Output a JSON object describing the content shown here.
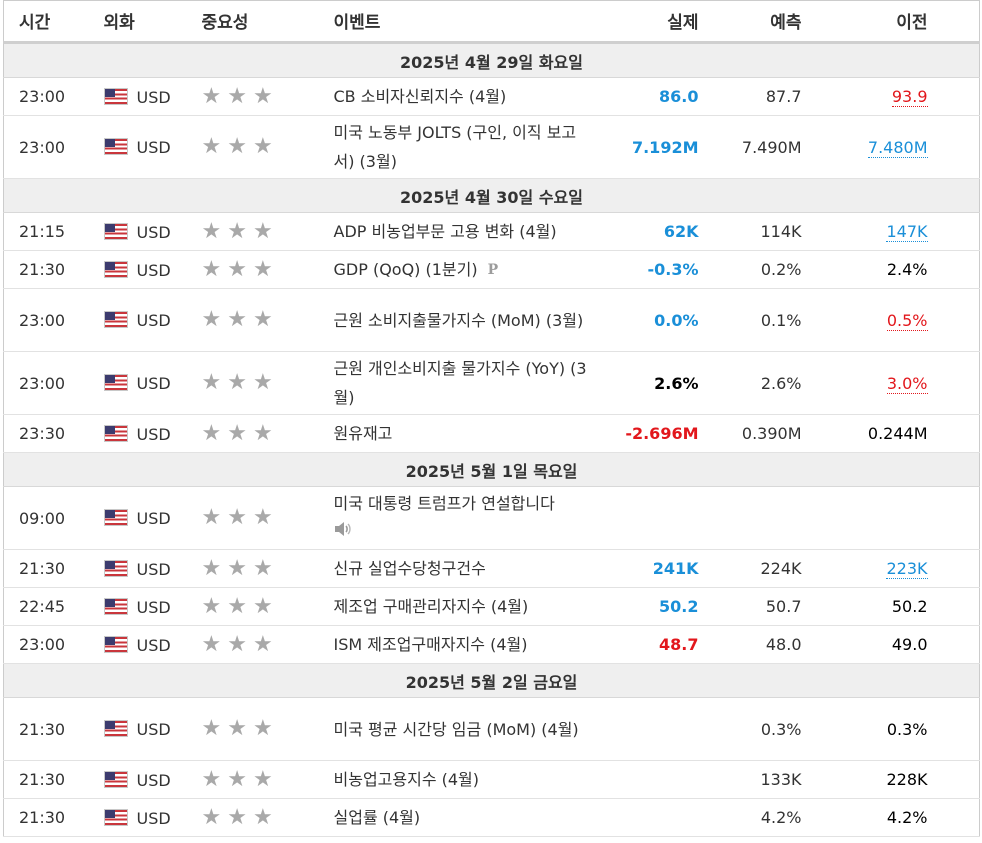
{
  "header": {
    "time": "시간",
    "currency": "외화",
    "importance": "중요성",
    "event": "이벤트",
    "actual": "실제",
    "forecast": "예측",
    "previous": "이전"
  },
  "icons": {
    "star": "star-icon",
    "flag": "us-flag-icon",
    "preliminary": "preliminary-icon",
    "speech": "speaker-icon"
  },
  "colors": {
    "better": "#1a8fd8",
    "worse": "#e2171c",
    "neutral": "#000000",
    "star": "#a9a9a9"
  },
  "days": [
    {
      "date": "2025년 4월 29일 화요일",
      "events": [
        {
          "time": "23:00",
          "currency": "USD",
          "importance": 3,
          "name": "CB 소비자신뢰지수 (4월)",
          "actual": "86.0",
          "actual_class": "blue bold",
          "forecast": "87.7",
          "previous": "93.9",
          "previous_class": "link-red"
        },
        {
          "time": "23:00",
          "currency": "USD",
          "importance": 3,
          "name": "미국 노동부 JOLTS (구인, 이직 보고서) (3월)",
          "tall": true,
          "actual": "7.192M",
          "actual_class": "blue bold",
          "forecast": "7.490M",
          "previous": "7.480M",
          "previous_class": "link-blue"
        }
      ]
    },
    {
      "date": "2025년 4월 30일 수요일",
      "events": [
        {
          "time": "21:15",
          "currency": "USD",
          "importance": 3,
          "name": "ADP 비농업부문 고용 변화 (4월)",
          "actual": "62K",
          "actual_class": "blue bold",
          "forecast": "114K",
          "previous": "147K",
          "previous_class": "link-blue"
        },
        {
          "time": "21:30",
          "currency": "USD",
          "importance": 3,
          "name": "GDP (QoQ) (1분기)",
          "preliminary": "P",
          "actual": "-0.3%",
          "actual_class": "blue bold",
          "forecast": "0.2%",
          "previous": "2.4%",
          "previous_class": "black"
        },
        {
          "time": "23:00",
          "currency": "USD",
          "importance": 3,
          "name": "근원 소비지출물가지수 (MoM) (3월)",
          "tall": true,
          "actual": "0.0%",
          "actual_class": "blue bold",
          "forecast": "0.1%",
          "previous": "0.5%",
          "previous_class": "link-red"
        },
        {
          "time": "23:00",
          "currency": "USD",
          "importance": 3,
          "name": "근원 개인소비지출 물가지수 (YoY) (3월)",
          "tall": true,
          "actual": "2.6%",
          "actual_class": "black bold",
          "forecast": "2.6%",
          "previous": "3.0%",
          "previous_class": "link-red"
        },
        {
          "time": "23:30",
          "currency": "USD",
          "importance": 3,
          "name": "원유재고",
          "actual": "-2.696M",
          "actual_class": "red bold",
          "forecast": "0.390M",
          "previous": "0.244M",
          "previous_class": "black"
        }
      ]
    },
    {
      "date": "2025년 5월 1일 목요일",
      "events": [
        {
          "time": "09:00",
          "currency": "USD",
          "importance": 3,
          "name": "미국 대통령 트럼프가 연설합니다",
          "speech": true,
          "tall": true,
          "actual": "",
          "actual_class": "",
          "forecast": "",
          "previous": "",
          "previous_class": ""
        },
        {
          "time": "21:30",
          "currency": "USD",
          "importance": 3,
          "name": "신규 실업수당청구건수",
          "actual": "241K",
          "actual_class": "blue bold",
          "forecast": "224K",
          "previous": "223K",
          "previous_class": "link-blue"
        },
        {
          "time": "22:45",
          "currency": "USD",
          "importance": 3,
          "name": "제조업 구매관리자지수 (4월)",
          "actual": "50.2",
          "actual_class": "blue bold",
          "forecast": "50.7",
          "previous": "50.2",
          "previous_class": "black"
        },
        {
          "time": "23:00",
          "currency": "USD",
          "importance": 3,
          "name": "ISM 제조업구매자지수 (4월)",
          "actual": "48.7",
          "actual_class": "red bold",
          "forecast": "48.0",
          "previous": "49.0",
          "previous_class": "black"
        }
      ]
    },
    {
      "date": "2025년 5월 2일 금요일",
      "events": [
        {
          "time": "21:30",
          "currency": "USD",
          "importance": 3,
          "name": "미국 평균 시간당 임금 (MoM) (4월)",
          "tall": true,
          "actual": "",
          "actual_class": "",
          "forecast": "0.3%",
          "previous": "0.3%",
          "previous_class": "black"
        },
        {
          "time": "21:30",
          "currency": "USD",
          "importance": 3,
          "name": "비농업고용지수 (4월)",
          "actual": "",
          "actual_class": "",
          "forecast": "133K",
          "previous": "228K",
          "previous_class": "black"
        },
        {
          "time": "21:30",
          "currency": "USD",
          "importance": 3,
          "name": "실업률 (4월)",
          "actual": "",
          "actual_class": "",
          "forecast": "4.2%",
          "previous": "4.2%",
          "previous_class": "black"
        }
      ]
    }
  ]
}
